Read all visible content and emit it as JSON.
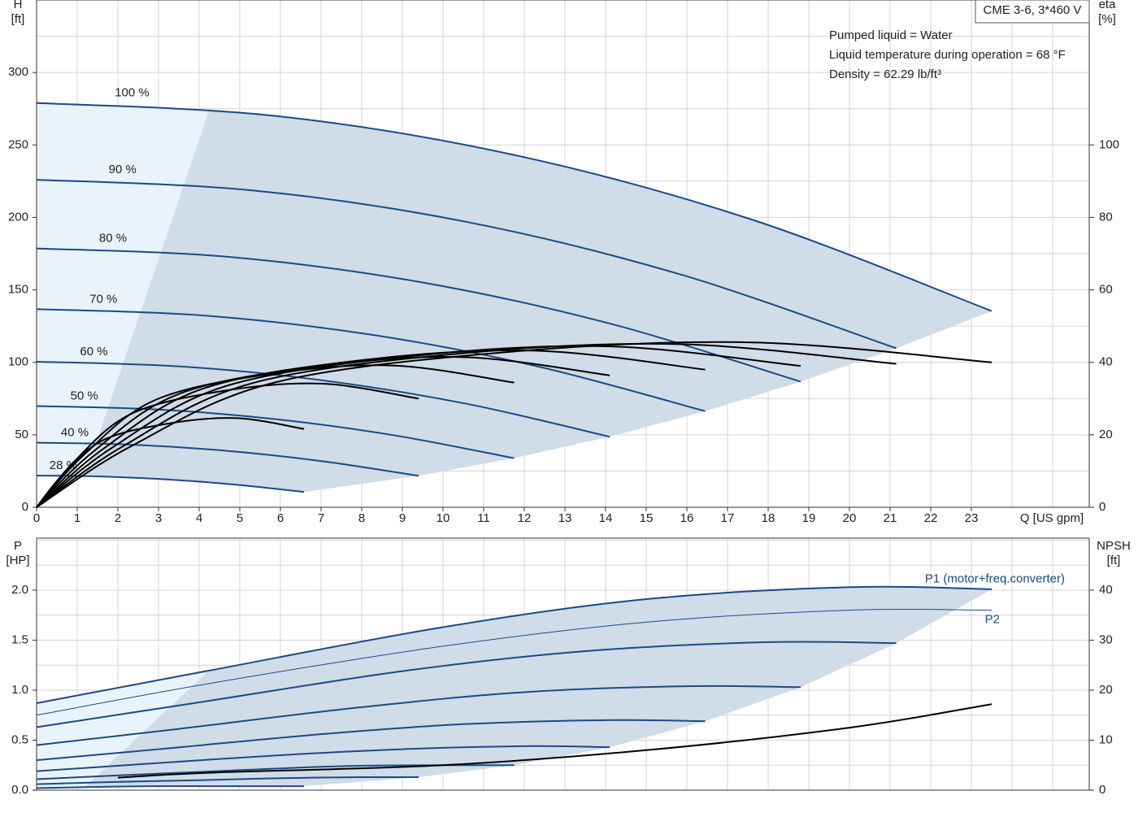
{
  "chart_data": [
    {
      "type": "line",
      "info_box": "CME 3-6, 3*460 V",
      "annotations": [
        "Pumped liquid = Water",
        "Liquid temperature during operation = 68 °F",
        "Density = 62.29 lb/ft³"
      ],
      "xlabel": "Q [US gpm]",
      "ylabel": [
        "H",
        "[ft]"
      ],
      "y2label": [
        "eta",
        "[%]"
      ],
      "xlim": [
        0,
        25.9
      ],
      "ylim": [
        0,
        350
      ],
      "y2lim": [
        0,
        140
      ],
      "xticks": [
        0,
        1,
        2,
        3,
        4,
        5,
        6,
        7,
        8,
        9,
        10,
        11,
        12,
        13,
        14,
        15,
        16,
        17,
        18,
        19,
        20,
        21,
        22,
        23
      ],
      "yticks": [
        0,
        50,
        100,
        150,
        200,
        250,
        300
      ],
      "y2ticks": [
        0,
        20,
        40,
        60,
        80,
        100
      ],
      "xgrid": [
        0,
        1,
        2,
        3,
        4,
        5,
        6,
        7,
        8,
        9,
        10,
        11,
        12,
        13,
        14,
        15,
        16,
        17,
        18,
        19,
        20,
        21,
        22,
        23,
        24,
        25
      ],
      "ygrid": [
        0,
        25,
        50,
        75,
        100,
        125,
        150,
        175,
        200,
        225,
        250,
        275,
        300,
        325,
        350
      ],
      "fill": "#d0dce8",
      "fill_light": "#e9f3fc",
      "series": [
        {
          "name": "100 %",
          "color": "#1a4a87",
          "x": [
            0,
            5.88,
            11.75,
            17.63,
            23.5
          ],
          "values": [
            279,
            270,
            243.1,
            198.2,
            135.4
          ]
        },
        {
          "name": "90 %",
          "color": "#1a4a87",
          "x": [
            0,
            5.29,
            10.58,
            15.86,
            21.15
          ],
          "values": [
            226,
            218.7,
            196.9,
            160.5,
            109.7
          ]
        },
        {
          "name": "80 %",
          "color": "#1a4a87",
          "x": [
            0,
            4.7,
            9.4,
            14.1,
            18.8
          ],
          "values": [
            178.6,
            172.8,
            155.6,
            126.8,
            86.7
          ]
        },
        {
          "name": "70 %",
          "color": "#1a4a87",
          "x": [
            0,
            4.11,
            8.23,
            12.34,
            16.45
          ],
          "values": [
            136.7,
            132.3,
            119.1,
            97.1,
            66.3
          ]
        },
        {
          "name": "60 %",
          "color": "#1a4a87",
          "x": [
            0,
            3.53,
            7.05,
            10.58,
            14.1
          ],
          "values": [
            100.4,
            97.2,
            87.5,
            71.4,
            48.7
          ]
        },
        {
          "name": "50 %",
          "color": "#1a4a87",
          "x": [
            0,
            2.94,
            5.88,
            8.81,
            11.75
          ],
          "values": [
            69.8,
            67.5,
            60.8,
            49.6,
            33.9
          ]
        },
        {
          "name": "40 %",
          "color": "#1a4a87",
          "x": [
            0,
            2.35,
            4.7,
            7.05,
            9.4
          ],
          "values": [
            44.6,
            43.2,
            38.9,
            31.7,
            21.7
          ]
        },
        {
          "name": "28 %",
          "color": "#1a4a87",
          "x": [
            0,
            1.65,
            3.29,
            4.94,
            6.58
          ],
          "values": [
            21.9,
            21.2,
            19.1,
            15.5,
            10.6
          ]
        },
        {
          "axis": "y2",
          "color": "#000000",
          "x": [
            0,
            2.35,
            5.88,
            11.75,
            17.63,
            23.5
          ],
          "values": [
            0,
            17,
            34.5,
            43,
            45.5,
            40
          ]
        },
        {
          "axis": "y2",
          "color": "#000000",
          "x": [
            0,
            2.12,
            5.29,
            10.58,
            15.86,
            21.15
          ],
          "values": [
            0,
            16.8,
            34.2,
            42.6,
            45,
            39.6
          ]
        },
        {
          "axis": "y2",
          "color": "#000000",
          "x": [
            0,
            1.88,
            4.7,
            9.4,
            14.1,
            18.8
          ],
          "values": [
            0,
            16.6,
            33.6,
            41.9,
            44.4,
            39
          ]
        },
        {
          "axis": "y2",
          "color": "#000000",
          "x": [
            0,
            1.65,
            4.11,
            8.23,
            12.34,
            16.45
          ],
          "values": [
            0,
            16.2,
            32.8,
            40.9,
            43.2,
            38
          ]
        },
        {
          "axis": "y2",
          "color": "#000000",
          "x": [
            0,
            1.41,
            3.53,
            7.05,
            10.58,
            14.1
          ],
          "values": [
            0,
            15.5,
            31.4,
            39.1,
            41.4,
            36.4
          ]
        },
        {
          "axis": "y2",
          "color": "#000000",
          "x": [
            0,
            1.18,
            2.94,
            5.88,
            8.81,
            11.75
          ],
          "values": [
            0,
            14.6,
            29.7,
            37,
            39.1,
            34.4
          ]
        },
        {
          "axis": "y2",
          "color": "#000000",
          "x": [
            0,
            0.94,
            2.35,
            4.7,
            7.05,
            9.4
          ],
          "values": [
            0,
            12.8,
            25.9,
            32.3,
            34.1,
            30
          ]
        },
        {
          "axis": "y2",
          "color": "#000000",
          "x": [
            0,
            0.66,
            1.65,
            3.29,
            4.94,
            6.58
          ],
          "values": [
            0,
            9.2,
            18.6,
            23.2,
            24.6,
            21.6
          ]
        }
      ]
    },
    {
      "type": "line",
      "ylabel": [
        "P",
        "[HP]"
      ],
      "y2label": [
        "NPSH",
        "[ft]"
      ],
      "xlim": [
        0,
        25.9
      ],
      "ylim": [
        0,
        2.52
      ],
      "y2lim": [
        0,
        50.4
      ],
      "yticks": [
        {
          "value": 0,
          "label": "0.0"
        },
        {
          "value": 0.5,
          "label": "0.5"
        },
        {
          "value": 1,
          "label": "1.0"
        },
        {
          "value": 1.5,
          "label": "1.5"
        },
        {
          "value": 2,
          "label": "2.0"
        }
      ],
      "y2ticks": [
        0,
        10,
        20,
        30,
        40
      ],
      "xgrid": [
        0,
        1,
        2,
        3,
        4,
        5,
        6,
        7,
        8,
        9,
        10,
        11,
        12,
        13,
        14,
        15,
        16,
        17,
        18,
        19,
        20,
        21,
        22,
        23,
        24,
        25
      ],
      "ygrid": [
        0,
        0.25,
        0.5,
        0.75,
        1,
        1.25,
        1.5,
        1.75,
        2,
        2.25,
        2.5
      ],
      "fill": "#d0dce8",
      "fill_light": "#e9f3fc",
      "series": [
        {
          "name": "P1 (motor+freq.converter)",
          "color": "#1a4a87",
          "x": [
            0,
            4.3,
            10,
            15,
            20,
            23.5
          ],
          "values": [
            0.87,
            1.2,
            1.63,
            1.91,
            2.03,
            2.01
          ]
        },
        {
          "color": "#1a4a87",
          "x": [
            0,
            3.87,
            9,
            13.5,
            18,
            21.15
          ],
          "values": [
            0.63,
            0.87,
            1.19,
            1.39,
            1.48,
            1.47
          ]
        },
        {
          "color": "#1a4a87",
          "x": [
            0,
            3.44,
            8,
            12,
            16,
            18.8
          ],
          "values": [
            0.45,
            0.61,
            0.83,
            0.98,
            1.04,
            1.03
          ]
        },
        {
          "color": "#1a4a87",
          "x": [
            0,
            3.01,
            7,
            10.5,
            14,
            16.45
          ],
          "values": [
            0.3,
            0.41,
            0.56,
            0.66,
            0.7,
            0.69
          ]
        },
        {
          "color": "#1a4a87",
          "x": [
            0,
            2.58,
            6,
            9,
            12,
            14.1
          ],
          "values": [
            0.19,
            0.26,
            0.35,
            0.41,
            0.44,
            0.43
          ]
        },
        {
          "color": "#1a4a87",
          "x": [
            0,
            2.15,
            5,
            7.5,
            10,
            11.75
          ],
          "values": [
            0.11,
            0.15,
            0.2,
            0.24,
            0.25,
            0.25
          ]
        },
        {
          "color": "#1a4a87",
          "x": [
            0,
            1.72,
            4,
            6,
            8,
            9.4
          ],
          "values": [
            0.06,
            0.08,
            0.1,
            0.12,
            0.13,
            0.13
          ]
        },
        {
          "color": "#1a4a87",
          "x": [
            0,
            1.2,
            2.8,
            4.2,
            5.6,
            6.58
          ],
          "values": [
            0.02,
            0.03,
            0.04,
            0.04,
            0.04,
            0.04
          ]
        },
        {
          "name": "P2",
          "color": "#1a4a87",
          "style": "thin",
          "x": [
            0,
            4.3,
            10,
            15,
            20,
            23.5
          ],
          "values": [
            0.75,
            1.07,
            1.44,
            1.68,
            1.8,
            1.8
          ]
        },
        {
          "axis": "y2",
          "color": "#000000",
          "x": [
            2,
            4.3,
            10,
            15,
            20,
            23.5
          ],
          "values": [
            2.5,
            3.5,
            5,
            8,
            12.5,
            17.2
          ]
        }
      ]
    }
  ]
}
